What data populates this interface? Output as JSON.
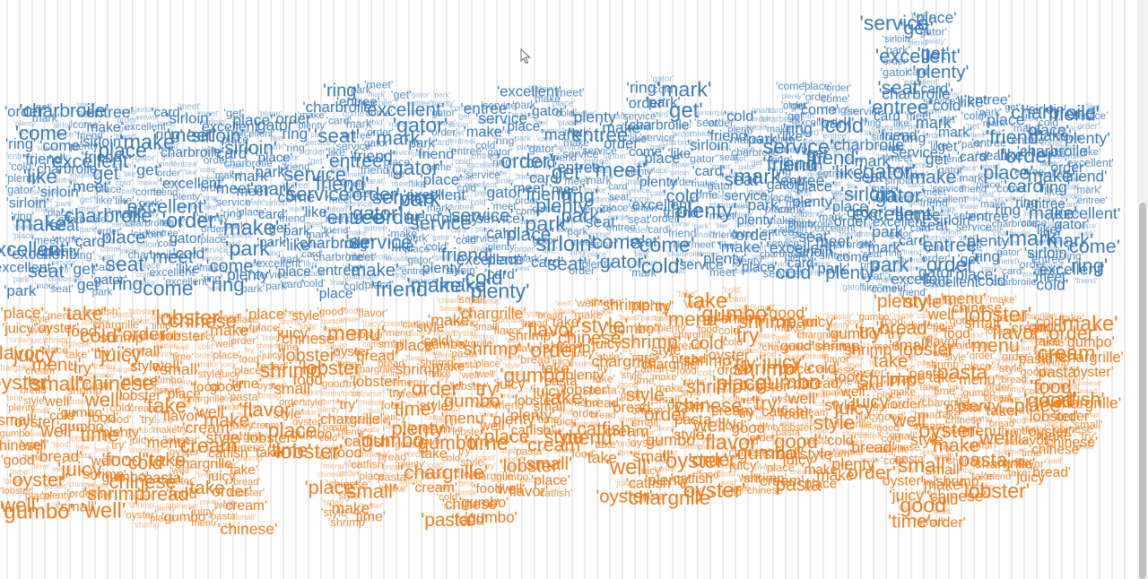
{
  "chart_data": {
    "type": "wordcloud",
    "colors": {
      "top": "#3a7ab8",
      "bottom": "#f07c1a"
    },
    "series": [
      {
        "color": "#3a7ab8",
        "words": [
          "'park'",
          "'make'",
          "'place'",
          "'gator'",
          "'ring'",
          "'service'",
          "'meet'",
          "'cold'",
          "'excellent'",
          "'come'",
          "'sirloin'",
          "'charbroile'",
          "'mark'",
          "'like'",
          "'seat'",
          "'card'",
          "'get'",
          "'entree'",
          "'plenty'",
          "'friend'",
          "'order'"
        ],
        "columns": [
          {
            "x": 48,
            "top": 112,
            "bottom": 322
          },
          {
            "x": 118,
            "top": 112,
            "bottom": 325
          },
          {
            "x": 188,
            "top": 112,
            "bottom": 318
          },
          {
            "x": 258,
            "top": 120,
            "bottom": 322
          },
          {
            "x": 328,
            "top": 118,
            "bottom": 318
          },
          {
            "x": 398,
            "top": 88,
            "bottom": 322
          },
          {
            "x": 468,
            "top": 100,
            "bottom": 318
          },
          {
            "x": 538,
            "top": 112,
            "bottom": 318
          },
          {
            "x": 608,
            "top": 90,
            "bottom": 300
          },
          {
            "x": 668,
            "top": 118,
            "bottom": 302
          },
          {
            "x": 738,
            "top": 82,
            "bottom": 300
          },
          {
            "x": 808,
            "top": 118,
            "bottom": 302
          },
          {
            "x": 868,
            "top": 112,
            "bottom": 302
          },
          {
            "x": 908,
            "top": 90,
            "bottom": 300
          },
          {
            "x": 968,
            "top": 118,
            "bottom": 318
          },
          {
            "x": 1022,
            "top": 10,
            "bottom": 322
          },
          {
            "x": 1082,
            "top": 100,
            "bottom": 310
          },
          {
            "x": 1148,
            "top": 112,
            "bottom": 310
          },
          {
            "x": 1192,
            "top": 112,
            "bottom": 310
          }
        ]
      },
      {
        "color": "#f07c1a",
        "words": [
          "'food'",
          "'take'",
          "'place'",
          "'gumbo'",
          "'well'",
          "'oyster'",
          "'cold'",
          "'order'",
          "'try'",
          "'good'",
          "'time'",
          "'bread'",
          "'make'",
          "'flavor'",
          "'juicy'",
          "'menu'",
          "'pasta'",
          "'small'",
          "'shrimp'",
          "'catfish'",
          "'cream'",
          "'chinese'",
          "'style'",
          "'chargrille'",
          "'lobster'",
          "'plenty'"
        ],
        "columns": [
          {
            "x": 42,
            "top": 340,
            "bottom": 568
          },
          {
            "x": 112,
            "top": 340,
            "bottom": 560
          },
          {
            "x": 182,
            "top": 340,
            "bottom": 582
          },
          {
            "x": 252,
            "top": 345,
            "bottom": 585
          },
          {
            "x": 322,
            "top": 338,
            "bottom": 510
          },
          {
            "x": 392,
            "top": 340,
            "bottom": 578
          },
          {
            "x": 462,
            "top": 352,
            "bottom": 540
          },
          {
            "x": 522,
            "top": 325,
            "bottom": 585
          },
          {
            "x": 592,
            "top": 340,
            "bottom": 555
          },
          {
            "x": 652,
            "top": 330,
            "bottom": 505
          },
          {
            "x": 722,
            "top": 328,
            "bottom": 555
          },
          {
            "x": 792,
            "top": 318,
            "bottom": 548
          },
          {
            "x": 852,
            "top": 338,
            "bottom": 545
          },
          {
            "x": 912,
            "top": 348,
            "bottom": 540
          },
          {
            "x": 972,
            "top": 348,
            "bottom": 520
          },
          {
            "x": 1032,
            "top": 325,
            "bottom": 578
          },
          {
            "x": 1092,
            "top": 325,
            "bottom": 558
          },
          {
            "x": 1152,
            "top": 345,
            "bottom": 530
          },
          {
            "x": 1192,
            "top": 345,
            "bottom": 500
          }
        ]
      }
    ]
  }
}
